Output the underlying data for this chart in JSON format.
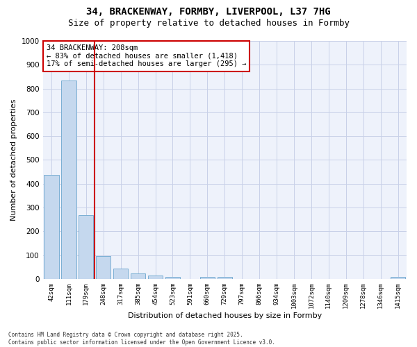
{
  "title_line1": "34, BRACKENWAY, FORMBY, LIVERPOOL, L37 7HG",
  "title_line2": "Size of property relative to detached houses in Formby",
  "xlabel": "Distribution of detached houses by size in Formby",
  "ylabel": "Number of detached properties",
  "categories": [
    "42sqm",
    "111sqm",
    "179sqm",
    "248sqm",
    "317sqm",
    "385sqm",
    "454sqm",
    "523sqm",
    "591sqm",
    "660sqm",
    "729sqm",
    "797sqm",
    "866sqm",
    "934sqm",
    "1003sqm",
    "1072sqm",
    "1140sqm",
    "1209sqm",
    "1278sqm",
    "1346sqm",
    "1415sqm"
  ],
  "values": [
    437,
    835,
    268,
    97,
    45,
    22,
    15,
    10,
    0,
    10,
    10,
    0,
    0,
    0,
    0,
    0,
    0,
    0,
    0,
    0,
    8
  ],
  "bar_color": "#c5d8ee",
  "bar_edge_color": "#7bafd4",
  "background_color": "#eef2fb",
  "grid_color": "#c8d0e8",
  "ylim": [
    0,
    1000
  ],
  "yticks": [
    0,
    100,
    200,
    300,
    400,
    500,
    600,
    700,
    800,
    900,
    1000
  ],
  "annotation_text": "34 BRACKENWAY: 208sqm\n← 83% of detached houses are smaller (1,418)\n17% of semi-detached houses are larger (295) →",
  "red_line_x": 2.5,
  "red_color": "#cc0000",
  "footer_line1": "Contains HM Land Registry data © Crown copyright and database right 2025.",
  "footer_line2": "Contains public sector information licensed under the Open Government Licence v3.0.",
  "title_fontsize": 10,
  "subtitle_fontsize": 9,
  "tick_fontsize": 6.5,
  "ylabel_fontsize": 8,
  "xlabel_fontsize": 8,
  "annotation_fontsize": 7.5,
  "footer_fontsize": 5.5
}
